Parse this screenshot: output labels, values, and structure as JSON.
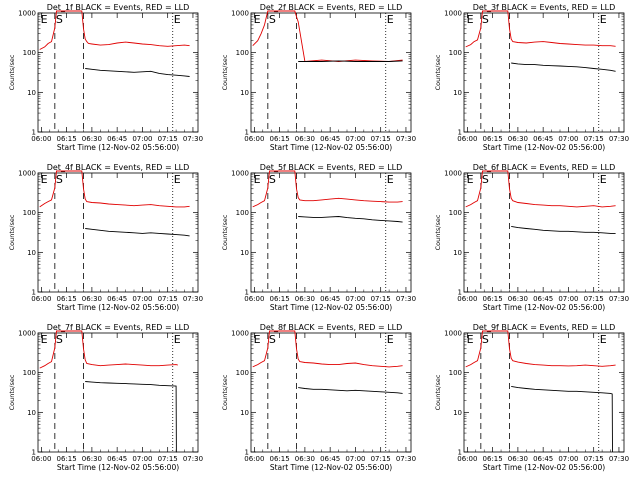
{
  "colors": {
    "events": "#000000",
    "lld": "#e00000",
    "axis": "#000000",
    "background": "#ffffff"
  },
  "chart_data": {
    "type": "line",
    "grid": false,
    "x_tick_labels": [
      "06:00",
      "06:15",
      "06:30",
      "06:45",
      "07:00",
      "07:15",
      "07:30"
    ],
    "x_ticks_min": [
      0,
      15,
      30,
      45,
      60,
      75,
      90
    ],
    "xlim_min": [
      -2,
      93
    ],
    "ylim": [
      1,
      1000
    ],
    "y_scale": "log",
    "y_tick_labels": [
      "1",
      "10",
      "100",
      "1000"
    ],
    "y_tick_values": [
      1,
      10,
      100,
      1000
    ],
    "ylabel": "Counts/sec",
    "xlabel": "Start Time (12-Nov-02 05:56:00)",
    "panels": [
      {
        "title": "Det_1f BLACK = Events, RED = LLD",
        "marks": [
          {
            "label": "E",
            "t": -1
          },
          {
            "label": "S",
            "t": 8
          }
        ],
        "mark_end": {
          "label": "E",
          "t": 78
        },
        "vlines_dashed": [
          8,
          25
        ],
        "vline_dotted": 78,
        "series": [
          {
            "name": "LLD",
            "color": "red",
            "t": [
              -1,
              2,
              4,
              6,
              8,
              9,
              10,
              11,
              12,
              13,
              24,
              25,
              26,
              27,
              28,
              30,
              35,
              40,
              45,
              50,
              55,
              60,
              65,
              70,
              75,
              80,
              85,
              88
            ],
            "values": [
              120,
              140,
              170,
              190,
              420,
              1200,
              1200,
              1200,
              1200,
              1200,
              1200,
              400,
              220,
              190,
              170,
              165,
              155,
              160,
              175,
              185,
              175,
              165,
              160,
              150,
              145,
              150,
              155,
              150
            ]
          },
          {
            "name": "Events",
            "color": "black",
            "t": [
              26,
              30,
              35,
              40,
              45,
              50,
              55,
              60,
              65,
              70,
              75,
              80,
              85,
              88
            ],
            "values": [
              40,
              38,
              36,
              35,
              34,
              33,
              32,
              33,
              34,
              30,
              28,
              27,
              26,
              25
            ]
          }
        ]
      },
      {
        "title": "Det_2f BLACK = Events, RED = LLD",
        "marks": [
          {
            "label": "E",
            "t": -1
          },
          {
            "label": "S",
            "t": 8
          }
        ],
        "mark_end": {
          "label": "E",
          "t": 78
        },
        "vlines_dashed": [
          8,
          25
        ],
        "vline_dotted": 78,
        "series": [
          {
            "name": "LLD",
            "color": "red",
            "t": [
              -1,
              2,
              4,
              6,
              8,
              9,
              10,
              24,
              25,
              26,
              30,
              40,
              50,
              60,
              70,
              80,
              88
            ],
            "values": [
              150,
              200,
              300,
              500,
              1200,
              1200,
              1200,
              1200,
              800,
              600,
              60,
              65,
              60,
              65,
              62,
              60,
              65
            ]
          },
          {
            "name": "Events",
            "color": "black",
            "t": [
              26,
              30,
              40,
              50,
              60,
              70,
              80,
              88
            ],
            "values": [
              60,
              60,
              60,
              62,
              60,
              60,
              60,
              62
            ]
          }
        ]
      },
      {
        "title": "Det_3f BLACK = Events, RED = LLD",
        "marks": [
          {
            "label": "E",
            "t": -1
          },
          {
            "label": "S",
            "t": 8
          }
        ],
        "mark_end": {
          "label": "E",
          "t": 78
        },
        "vlines_dashed": [
          8,
          25
        ],
        "vline_dotted": 78,
        "series": [
          {
            "name": "LLD",
            "color": "red",
            "t": [
              -1,
              2,
              4,
              6,
              8,
              9,
              10,
              24,
              25,
              26,
              27,
              30,
              35,
              40,
              45,
              50,
              55,
              60,
              65,
              70,
              75,
              80,
              85,
              88
            ],
            "values": [
              140,
              160,
              190,
              210,
              420,
              1200,
              1200,
              1200,
              400,
              220,
              190,
              180,
              175,
              185,
              190,
              180,
              170,
              165,
              160,
              155,
              155,
              150,
              150,
              145
            ]
          },
          {
            "name": "Events",
            "color": "black",
            "t": [
              26,
              30,
              35,
              40,
              45,
              50,
              55,
              60,
              65,
              70,
              75,
              80,
              85,
              88
            ],
            "values": [
              55,
              52,
              50,
              50,
              48,
              47,
              46,
              45,
              44,
              42,
              40,
              38,
              36,
              34
            ]
          }
        ]
      },
      {
        "title": "Det_4f BLACK = Events, RED = LLD",
        "marks": [
          {
            "label": "E",
            "t": -1
          },
          {
            "label": "S",
            "t": 8
          }
        ],
        "mark_end": {
          "label": "E",
          "t": 78
        },
        "vlines_dashed": [
          8,
          25
        ],
        "vline_dotted": 78,
        "series": [
          {
            "name": "LLD",
            "color": "red",
            "t": [
              -1,
              2,
              4,
              6,
              8,
              9,
              10,
              24,
              25,
              26,
              27,
              30,
              35,
              40,
              45,
              50,
              55,
              60,
              65,
              70,
              75,
              80,
              85,
              88
            ],
            "values": [
              140,
              170,
              190,
              210,
              420,
              1200,
              1200,
              1200,
              400,
              220,
              190,
              180,
              175,
              165,
              160,
              155,
              150,
              155,
              160,
              150,
              145,
              140,
              140,
              145
            ]
          },
          {
            "name": "Events",
            "color": "black",
            "t": [
              26,
              30,
              35,
              40,
              45,
              50,
              55,
              60,
              65,
              70,
              75,
              80,
              85,
              88
            ],
            "values": [
              40,
              38,
              36,
              34,
              33,
              32,
              31,
              30,
              31,
              30,
              29,
              28,
              27,
              26
            ]
          }
        ]
      },
      {
        "title": "Det_5f BLACK = Events, RED = LLD",
        "marks": [
          {
            "label": "E",
            "t": -1
          },
          {
            "label": "S",
            "t": 8
          }
        ],
        "mark_end": {
          "label": "E",
          "t": 78
        },
        "vlines_dashed": [
          8,
          25
        ],
        "vline_dotted": 78,
        "series": [
          {
            "name": "LLD",
            "color": "red",
            "t": [
              -1,
              2,
              4,
              6,
              8,
              9,
              10,
              24,
              25,
              26,
              27,
              30,
              35,
              40,
              45,
              50,
              55,
              60,
              65,
              70,
              75,
              80,
              85,
              88
            ],
            "values": [
              140,
              160,
              180,
              200,
              420,
              1200,
              1200,
              1200,
              400,
              240,
              210,
              200,
              200,
              210,
              220,
              230,
              220,
              210,
              200,
              195,
              190,
              185,
              185,
              190
            ]
          },
          {
            "name": "Events",
            "color": "black",
            "t": [
              26,
              30,
              35,
              40,
              45,
              50,
              55,
              60,
              65,
              70,
              75,
              80,
              85,
              88
            ],
            "values": [
              80,
              78,
              76,
              76,
              78,
              80,
              75,
              72,
              70,
              66,
              64,
              62,
              60,
              58
            ]
          }
        ]
      },
      {
        "title": "Det_6f BLACK = Events, RED = LLD",
        "marks": [
          {
            "label": "E",
            "t": -1
          },
          {
            "label": "S",
            "t": 8
          }
        ],
        "mark_end": {
          "label": "E",
          "t": 78
        },
        "vlines_dashed": [
          8,
          25
        ],
        "vline_dotted": 78,
        "series": [
          {
            "name": "LLD",
            "color": "red",
            "t": [
              -1,
              2,
              4,
              6,
              8,
              9,
              10,
              24,
              25,
              26,
              27,
              30,
              35,
              40,
              45,
              50,
              55,
              60,
              65,
              70,
              75,
              80,
              85,
              88
            ],
            "values": [
              140,
              160,
              180,
              200,
              420,
              1200,
              1200,
              1200,
              400,
              230,
              200,
              180,
              170,
              160,
              155,
              150,
              150,
              145,
              140,
              145,
              150,
              140,
              145,
              150
            ]
          },
          {
            "name": "Events",
            "color": "black",
            "t": [
              26,
              30,
              35,
              40,
              45,
              50,
              55,
              60,
              65,
              70,
              75,
              80,
              85,
              88
            ],
            "values": [
              45,
              42,
              40,
              38,
              36,
              35,
              34,
              34,
              33,
              32,
              32,
              31,
              30,
              30
            ]
          }
        ]
      },
      {
        "title": "Det_7f BLACK = Events, RED = LLD",
        "marks": [
          {
            "label": "E",
            "t": -1
          },
          {
            "label": "S",
            "t": 8
          }
        ],
        "mark_end": {
          "label": "E",
          "t": 78
        },
        "vlines_dashed": [
          8,
          25
        ],
        "vline_dotted": 78,
        "series": [
          {
            "name": "LLD",
            "color": "red",
            "t": [
              -1,
              2,
              4,
              6,
              8,
              9,
              10,
              24,
              25,
              26,
              27,
              30,
              35,
              40,
              45,
              50,
              55,
              60,
              65,
              70,
              75,
              80,
              81
            ],
            "values": [
              130,
              150,
              170,
              190,
              420,
              1200,
              1200,
              1200,
              400,
              210,
              170,
              160,
              150,
              155,
              160,
              165,
              160,
              155,
              150,
              150,
              155,
              160,
              155
            ]
          },
          {
            "name": "Events",
            "color": "black",
            "t": [
              26,
              30,
              35,
              40,
              45,
              50,
              55,
              60,
              65,
              70,
              75,
              80,
              80.2,
              80.4
            ],
            "values": [
              60,
              58,
              56,
              55,
              54,
              53,
              52,
              51,
              50,
              48,
              47,
              46,
              1,
              1
            ]
          }
        ]
      },
      {
        "title": "Det_8f BLACK = Events, RED = LLD",
        "marks": [
          {
            "label": "E",
            "t": -1
          },
          {
            "label": "S",
            "t": 8
          }
        ],
        "mark_end": {
          "label": "E",
          "t": 78
        },
        "vlines_dashed": [
          8,
          25
        ],
        "vline_dotted": 78,
        "series": [
          {
            "name": "LLD",
            "color": "red",
            "t": [
              -1,
              2,
              4,
              6,
              8,
              9,
              10,
              24,
              25,
              26,
              27,
              30,
              35,
              40,
              45,
              50,
              55,
              60,
              65,
              70,
              75,
              80,
              85,
              88
            ],
            "values": [
              140,
              160,
              180,
              200,
              420,
              1200,
              1200,
              1200,
              400,
              220,
              190,
              180,
              175,
              165,
              160,
              160,
              170,
              175,
              160,
              150,
              145,
              140,
              145,
              150
            ]
          },
          {
            "name": "Events",
            "color": "black",
            "t": [
              26,
              30,
              35,
              40,
              45,
              50,
              55,
              60,
              65,
              70,
              75,
              80,
              85,
              88
            ],
            "values": [
              42,
              40,
              38,
              38,
              37,
              36,
              35,
              36,
              35,
              34,
              33,
              32,
              31,
              30
            ]
          }
        ]
      },
      {
        "title": "Det_9f BLACK = Events, RED = LLD",
        "marks": [
          {
            "label": "E",
            "t": -1
          },
          {
            "label": "S",
            "t": 8
          }
        ],
        "mark_end": {
          "label": "E",
          "t": 78
        },
        "vlines_dashed": [
          8,
          25
        ],
        "vline_dotted": 78,
        "series": [
          {
            "name": "LLD",
            "color": "red",
            "t": [
              -1,
              2,
              4,
              6,
              8,
              9,
              10,
              24,
              25,
              26,
              27,
              30,
              35,
              40,
              45,
              50,
              55,
              60,
              65,
              70,
              75,
              80,
              85,
              88
            ],
            "values": [
              140,
              160,
              180,
              200,
              420,
              1200,
              1200,
              1200,
              400,
              230,
              200,
              185,
              170,
              160,
              155,
              150,
              150,
              148,
              150,
              155,
              150,
              145,
              150,
              155
            ]
          },
          {
            "name": "Events",
            "color": "black",
            "t": [
              26,
              30,
              35,
              40,
              45,
              50,
              55,
              60,
              65,
              70,
              75,
              80,
              85,
              86,
              86.2
            ],
            "values": [
              45,
              42,
              40,
              38,
              37,
              36,
              35,
              34,
              34,
              33,
              32,
              31,
              30,
              29,
              1
            ]
          }
        ]
      }
    ]
  }
}
